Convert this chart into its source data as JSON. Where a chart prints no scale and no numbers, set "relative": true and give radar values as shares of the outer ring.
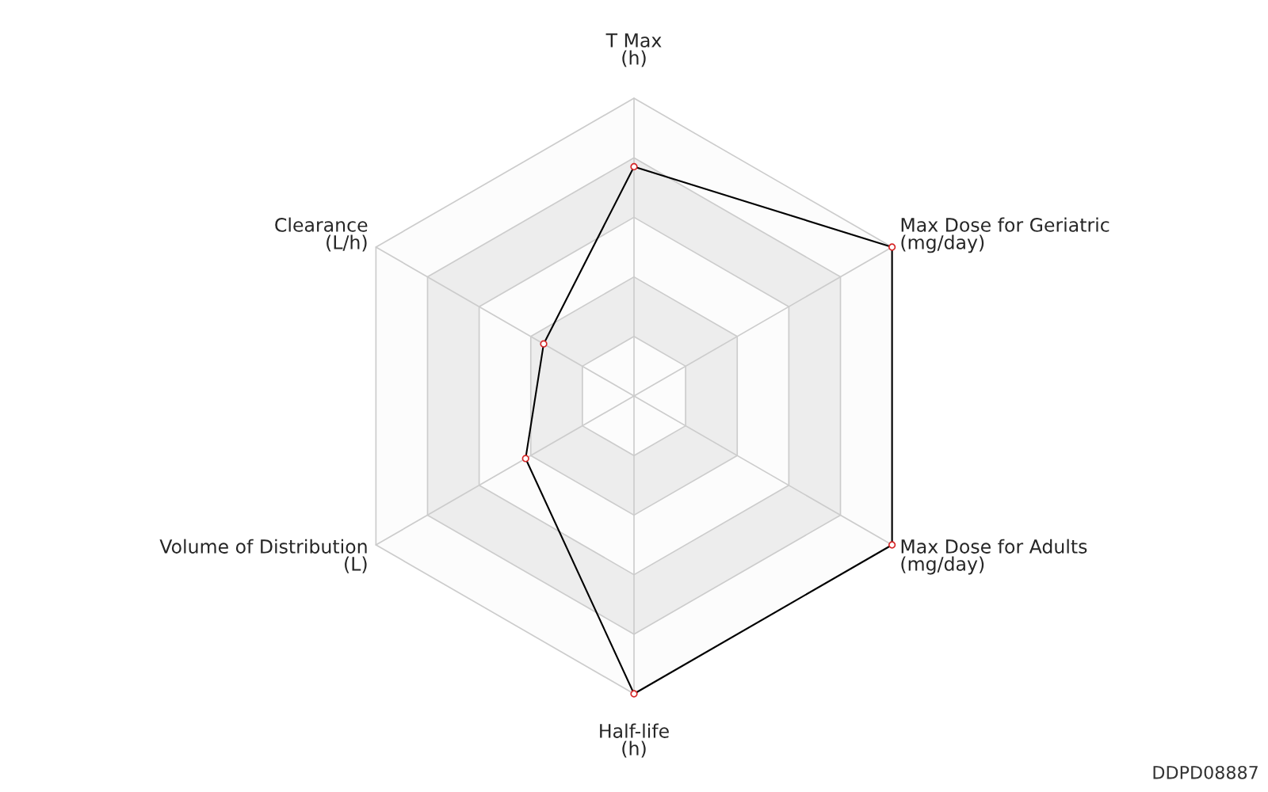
{
  "chart_data": {
    "type": "radar",
    "relative": true,
    "categories": [
      "T Max\n(h)",
      "Max Dose for Geriatric\n(mg/day)",
      "Max Dose for Adults\n(mg/day)",
      "Half-life\n(h)",
      "Volume of Distribution\n(L)",
      "Clearance\n(L/h)"
    ],
    "series": [
      {
        "color": "#000000",
        "values": [
          0.77,
          1,
          1,
          1,
          0.42,
          0.35
        ]
      }
    ],
    "marker": "circle",
    "grid": true,
    "annotations": [
      "DDPD08887"
    ]
  }
}
